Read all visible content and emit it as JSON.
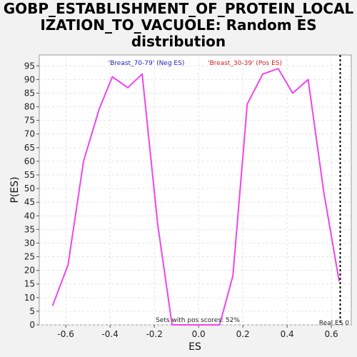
{
  "title_lines": [
    "GOBP_ESTABLISHMENT_OF_PROTEIN_LOCAL",
    "IZATION_TO_VACUOLE: Random ES",
    "distribution"
  ],
  "chart_data": {
    "type": "line",
    "title": "GOBP_ESTABLISHMENT_OF_PROTEIN_LOCALIZATION_TO_VACUOLE: Random ES distribution",
    "xlabel": "ES",
    "ylabel": "P(ES)",
    "xlim": [
      -0.72,
      0.69
    ],
    "ylim": [
      0,
      99
    ],
    "x_ticks": [
      -0.6,
      -0.4,
      -0.2,
      0.0,
      0.2,
      0.4,
      0.6
    ],
    "x_tick_labels": [
      "-0.6",
      "-0.4",
      "-0.2",
      "0.0",
      "0.2",
      "0.4",
      "0.6"
    ],
    "y_ticks": [
      0,
      5,
      10,
      15,
      20,
      25,
      30,
      35,
      40,
      45,
      50,
      55,
      60,
      65,
      70,
      75,
      80,
      85,
      90,
      95
    ],
    "grid": true,
    "series": [
      {
        "color": "#ee44ee",
        "x": [
          -0.66,
          -0.59,
          -0.52,
          -0.45,
          -0.39,
          -0.32,
          -0.255,
          -0.185,
          -0.12,
          -0.06,
          0.0,
          0.06,
          0.095,
          0.155,
          0.22,
          0.29,
          0.36,
          0.425,
          0.495,
          0.565,
          0.635
        ],
        "y": [
          7,
          22,
          60,
          79,
          91,
          87,
          92,
          37,
          0,
          0,
          0,
          0,
          0,
          18,
          81,
          92,
          94,
          85,
          90,
          49,
          16
        ]
      }
    ],
    "legend": [
      {
        "label": "'Breast_70-79' (Neg ES)",
        "color": "#2222bb"
      },
      {
        "label": "'Breast_30-39' (Pos ES)",
        "color": "#cc2222"
      }
    ],
    "annotations": {
      "pos_scores_text": "Sets with pos scores: 52%",
      "real_es_label": "Real ES 0",
      "real_es_x": 0.64,
      "real_es_color": "#000000"
    }
  }
}
